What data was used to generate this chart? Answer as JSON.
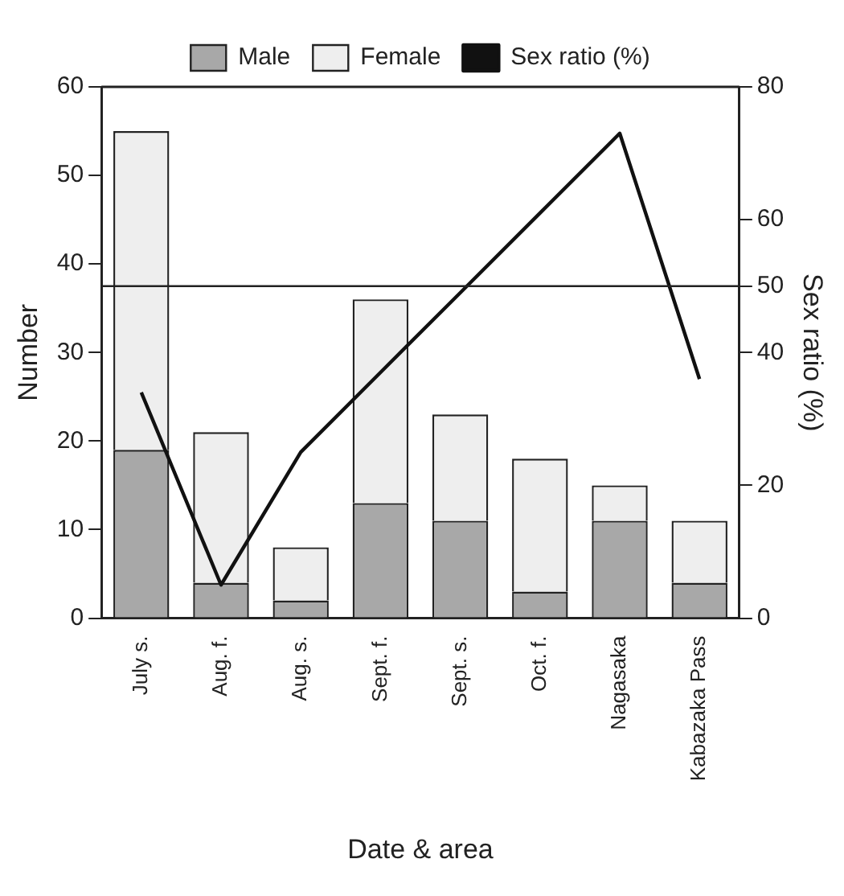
{
  "chart_data": {
    "type": "bar",
    "stacked": true,
    "xlabel": "Date & area",
    "ylabel": "Number",
    "y2label": "Sex ratio (%)",
    "categories": [
      "July s.",
      "Aug. f.",
      "Aug. s.",
      "Sept. f.",
      "Sept. s.",
      "Oct. f.",
      "Nagasaka",
      "Kabazaka Pass"
    ],
    "series": [
      {
        "name": "Male",
        "color": "#a8a8a8",
        "values": [
          19,
          4,
          2,
          13,
          11,
          3,
          11,
          4
        ]
      },
      {
        "name": "Female",
        "color": "#eeeeee",
        "values": [
          36,
          17,
          6,
          23,
          12,
          15,
          4,
          7
        ]
      },
      {
        "name": "Sex ratio (%)",
        "type": "line",
        "axis": "y2",
        "color": "#111111",
        "values": [
          34,
          5,
          25,
          37,
          49,
          61,
          73,
          36
        ]
      }
    ],
    "ylim": [
      0,
      60
    ],
    "yticks": [
      0,
      10,
      20,
      30,
      40,
      50,
      60
    ],
    "y2lim": [
      0,
      80
    ],
    "y2ticks": [
      0,
      20,
      40,
      50,
      60,
      80
    ],
    "ref_lines": [
      {
        "axis": "y2",
        "value": 50,
        "color": "#222222"
      }
    ],
    "legend": "top",
    "marker": "none",
    "grid": false
  }
}
